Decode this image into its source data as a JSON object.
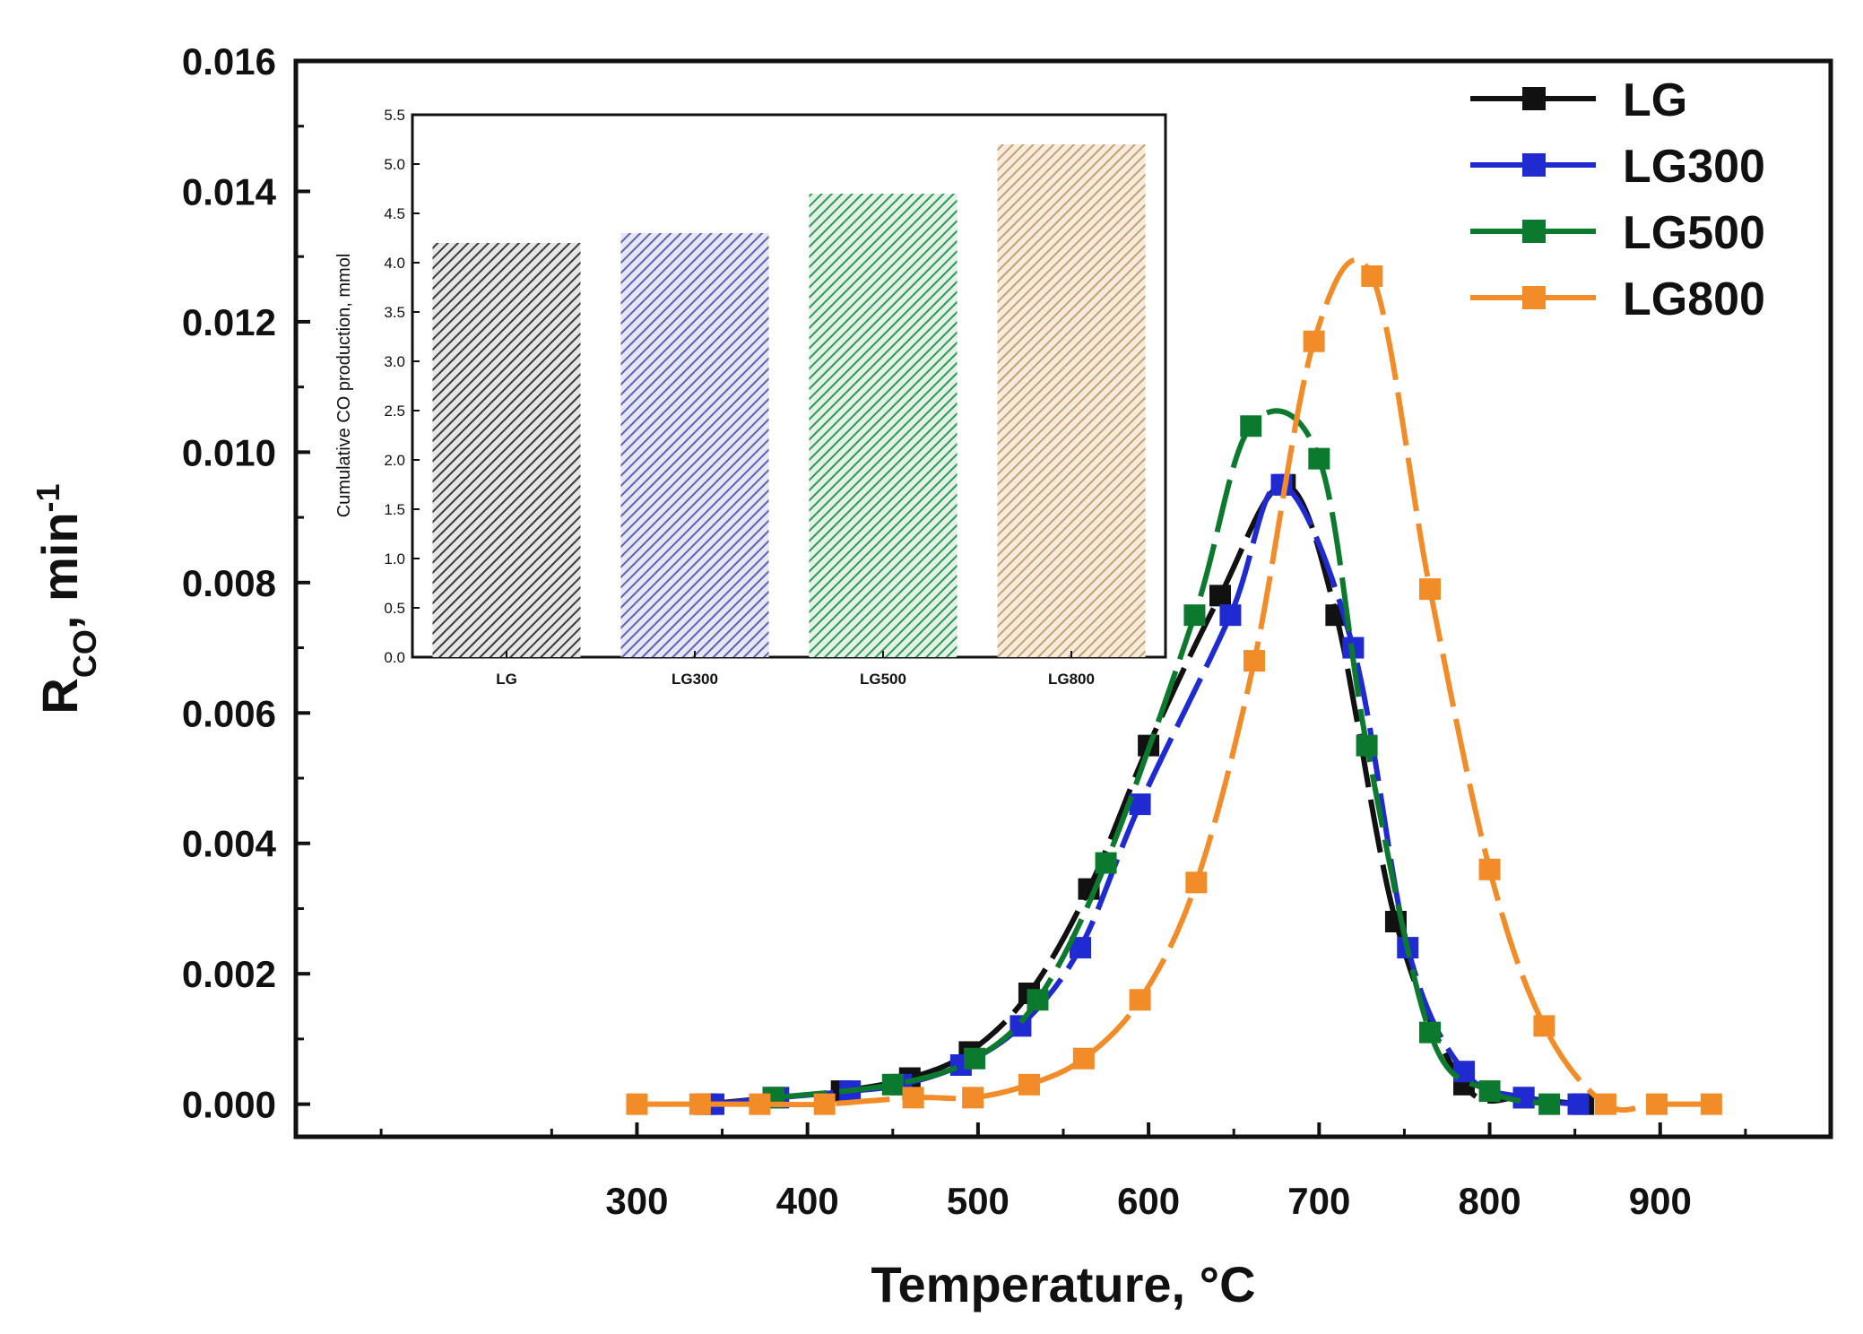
{
  "chart_data": [
    {
      "type": "line",
      "title": "",
      "xlabel": "Temperature, °C",
      "ylabel": "R",
      "ylabel_sub": "CO",
      "ylabel_tail": ", min",
      "ylabel_sup": "-1",
      "xlim": [
        100,
        1000
      ],
      "ylim": [
        -0.0005,
        0.016
      ],
      "xticks": [
        "300",
        "400",
        "500",
        "600",
        "700",
        "800",
        "900"
      ],
      "yticks": [
        "0.000",
        "0.002",
        "0.004",
        "0.006",
        "0.008",
        "0.010",
        "0.012",
        "0.014",
        "0.016"
      ],
      "grid": false,
      "legend_position": "top-right",
      "series": [
        {
          "name": "LG",
          "color": "#111111",
          "marker": "square",
          "x": [
            340,
            380,
            420,
            460,
            495,
            530,
            565,
            600,
            642,
            680,
            710,
            745,
            785,
            820,
            855
          ],
          "y": [
            0.0,
            0.0001,
            0.0002,
            0.0004,
            0.0008,
            0.0017,
            0.0033,
            0.0055,
            0.0078,
            0.0095,
            0.0075,
            0.0028,
            0.0003,
            0.0001,
            0.0
          ]
        },
        {
          "name": "LG300",
          "color": "#1f2bd0",
          "marker": "square",
          "x": [
            345,
            383,
            425,
            455,
            490,
            525,
            560,
            595,
            648,
            678,
            720,
            752,
            785,
            820,
            852
          ],
          "y": [
            0.0,
            0.0001,
            0.0002,
            0.0003,
            0.0006,
            0.0012,
            0.0024,
            0.0046,
            0.0075,
            0.0095,
            0.007,
            0.0024,
            0.0005,
            0.0001,
            0.0
          ]
        },
        {
          "name": "LG500",
          "color": "#0c7a2e",
          "marker": "square",
          "x": [
            380,
            450,
            498,
            535,
            575,
            627,
            660,
            700,
            728,
            765,
            800,
            835
          ],
          "y": [
            0.0001,
            0.0003,
            0.0007,
            0.0016,
            0.0037,
            0.0075,
            0.0104,
            0.0099,
            0.0055,
            0.0011,
            0.0002,
            0.0
          ]
        },
        {
          "name": "LG800",
          "color": "#f28c28",
          "marker": "square",
          "x": [
            300,
            337,
            372,
            410,
            462,
            497,
            530,
            562,
            595,
            628,
            662,
            697,
            731,
            765,
            800,
            832,
            868,
            898,
            930
          ],
          "y": [
            0.0,
            0.0,
            0.0,
            0.0,
            0.0001,
            0.0001,
            0.0003,
            0.0007,
            0.0016,
            0.0034,
            0.0068,
            0.0117,
            0.0127,
            0.0079,
            0.0036,
            0.0012,
            0.0,
            0.0,
            0.0
          ]
        }
      ]
    },
    {
      "type": "bar",
      "title": "",
      "xlabel": "",
      "ylabel": "Cumulative CO production, mmol",
      "categories": [
        "LG",
        "LG300",
        "LG500",
        "LG800"
      ],
      "values": [
        4.2,
        4.3,
        4.7,
        5.2
      ],
      "colors": [
        "#3a3a3a",
        "#5a62b8",
        "#2c9a52",
        "#c9a06a"
      ],
      "ylim": [
        0,
        5.5
      ],
      "yticks": [
        "0.0",
        "0.5",
        "1.0",
        "1.5",
        "2.0",
        "2.5",
        "3.0",
        "3.5",
        "4.0",
        "4.5",
        "5.0",
        "5.5"
      ],
      "grid": false
    }
  ]
}
